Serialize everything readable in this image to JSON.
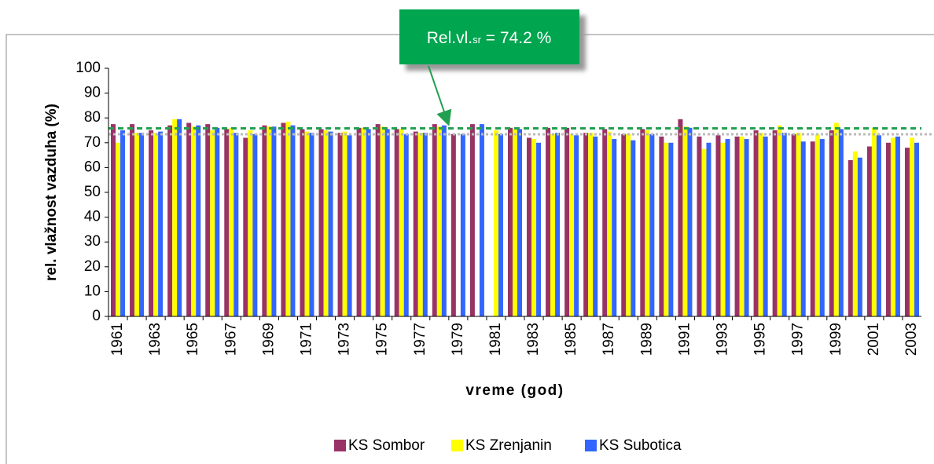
{
  "chart_data": {
    "type": "bar",
    "x_label": "vreme (god)",
    "y_label": "rel. vlažnost vazduha (%)",
    "annotation": {
      "text": "Rel.vl.",
      "subscript": "sr",
      "rest": " = 74.2 %"
    },
    "reference_lines": [
      {
        "value": 75.8,
        "color": "#22a050"
      },
      {
        "value": 73.4,
        "color": "#bbbbbb"
      }
    ],
    "categories": [
      "1961",
      null,
      "1963",
      null,
      "1965",
      null,
      "1967",
      null,
      "1969",
      null,
      "1971",
      null,
      "1973",
      null,
      "1975",
      null,
      "1977",
      null,
      "1979",
      null,
      "1981",
      null,
      "1983",
      null,
      "1985",
      null,
      "1987",
      null,
      "1989",
      null,
      "1991",
      null,
      "1993",
      null,
      "1995",
      null,
      "1997",
      null,
      "1999",
      null,
      "2001",
      null,
      "2003"
    ],
    "series": [
      {
        "name": "KS Sombor",
        "color": "#993366",
        "values": [
          77.5,
          77.5,
          75,
          77,
          78,
          77.5,
          75.5,
          72,
          77,
          78,
          75.5,
          75.5,
          74,
          76,
          77.5,
          75.5,
          74.5,
          77.5,
          73.5,
          77.5,
          null,
          76,
          72,
          76,
          76,
          74,
          75.5,
          73.5,
          75.5,
          72.5,
          79.5,
          72.5,
          73,
          72.5,
          75,
          75,
          73.5,
          70.5,
          75,
          63,
          68.5,
          70,
          68
        ]
      },
      {
        "name": "KS Zrenjanin",
        "color": "#ffff00",
        "values": [
          70,
          74,
          74,
          79.5,
          76.5,
          75,
          76,
          75,
          76.5,
          78.5,
          74.5,
          75,
          74.5,
          76,
          76.5,
          75.5,
          74,
          76.5,
          null,
          null,
          75,
          75.5,
          71.5,
          73.5,
          73.5,
          74,
          74.5,
          73.5,
          75,
          70,
          76.5,
          67.5,
          70,
          72.5,
          74,
          77,
          74,
          73.5,
          78,
          66.5,
          76,
          72,
          72
        ]
      },
      {
        "name": "KS Subotica",
        "color": "#3366ff",
        "values": [
          75,
          74,
          74.5,
          79.5,
          77,
          76,
          74,
          73.5,
          76.5,
          77,
          74,
          74.5,
          73,
          75.5,
          75.5,
          73.5,
          74,
          77,
          73.5,
          77.5,
          73.5,
          75.5,
          70,
          74,
          73,
          72.5,
          71.5,
          71,
          73.5,
          70,
          76,
          70,
          71.5,
          71.5,
          72.5,
          74,
          70.5,
          71.5,
          75.5,
          64,
          73,
          72.5,
          70
        ]
      }
    ],
    "ylim": [
      0,
      100
    ],
    "yticks": [
      0,
      10,
      20,
      30,
      40,
      50,
      60,
      70,
      80,
      90,
      100
    ],
    "legend": "bottom",
    "grid": false
  }
}
